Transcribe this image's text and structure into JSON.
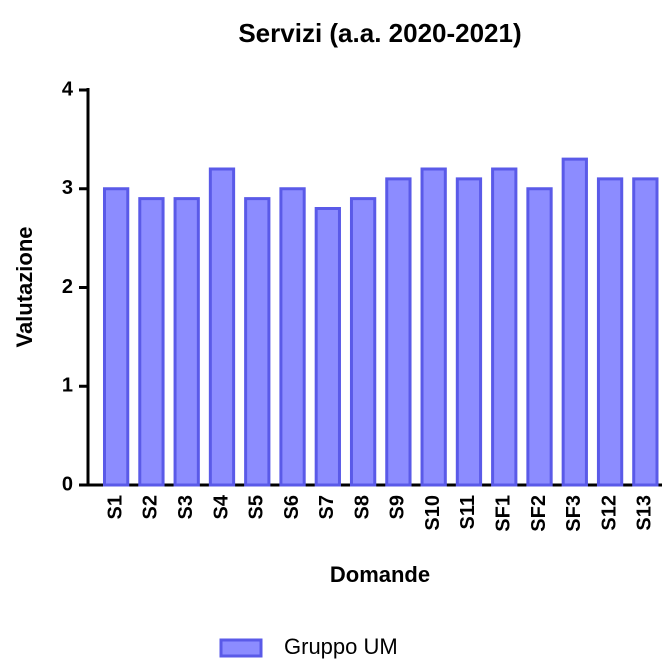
{
  "chart_data": {
    "type": "bar",
    "title": "Servizi (a.a. 2020-2021)",
    "x_label": "Domande",
    "y_label": "Valutazione",
    "categories": [
      "S1",
      "S2",
      "S3",
      "S4",
      "S5",
      "S6",
      "S7",
      "S8",
      "S9",
      "S10",
      "S11",
      "SF1",
      "SF2",
      "SF3",
      "S12",
      "S13"
    ],
    "series": [
      {
        "name": "Gruppo UM",
        "color": "#8c8cff",
        "values": [
          3.0,
          2.9,
          2.9,
          3.2,
          2.9,
          3.0,
          2.8,
          2.9,
          3.1,
          3.2,
          3.1,
          3.2,
          3.0,
          3.3,
          3.1,
          3.1
        ]
      }
    ],
    "ylim": [
      0,
      4
    ],
    "yticks": [
      0,
      1,
      2,
      3,
      4
    ],
    "grid": false
  }
}
